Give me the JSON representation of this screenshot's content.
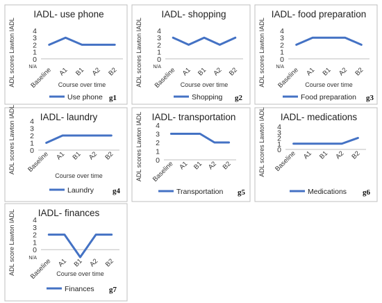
{
  "style": {
    "line_color": "#4472C4",
    "border_color": "#bfbfbf"
  },
  "chart_data": [
    {
      "type": "line",
      "title": "IADL- use phone",
      "ylabel": "ADL scores Lawton IADL",
      "xlabel": "Course over time",
      "categories": [
        "Baseline",
        "A1",
        "B1",
        "A2",
        "B2"
      ],
      "yticks": [
        "N/A",
        "0",
        "1",
        "2",
        "3",
        "4"
      ],
      "ylim": [
        -1,
        4
      ],
      "series": [
        {
          "name": "Use phone",
          "values": [
            2,
            3,
            2,
            2,
            2
          ]
        }
      ],
      "id_label": "g1"
    },
    {
      "type": "line",
      "title": "IADL- shopping",
      "ylabel": "ADL scores Lawton IADL",
      "xlabel": "Course over time",
      "categories": [
        "Baseline",
        "A1",
        "B1",
        "A2",
        "B2"
      ],
      "yticks": [
        "N/A",
        "0",
        "1",
        "2",
        "3",
        "4"
      ],
      "ylim": [
        -1,
        4
      ],
      "series": [
        {
          "name": "Shopping",
          "values": [
            3,
            2,
            3,
            2,
            3
          ]
        }
      ],
      "id_label": "g2"
    },
    {
      "type": "line",
      "title": "IADL- food preparation",
      "ylabel": "ADL scores Lawton IADL",
      "xlabel": "Course over time",
      "categories": [
        "Baseline",
        "A1",
        "B1",
        "A2",
        "B2"
      ],
      "yticks": [
        "N/A",
        "0",
        "1",
        "2",
        "3",
        "4"
      ],
      "ylim": [
        -1,
        4
      ],
      "series": [
        {
          "name": "Food preparation",
          "values": [
            2,
            3,
            3,
            3,
            2
          ]
        }
      ],
      "id_label": "g3"
    },
    {
      "type": "line",
      "title": "IADL- laundry",
      "ylabel": "ADL scores Lawton IADL",
      "xlabel": "Course over time",
      "categories": [
        "Baseline",
        "A1",
        "B1",
        "A2",
        "B2"
      ],
      "yticks": [
        "0",
        "1",
        "2",
        "3",
        "4"
      ],
      "ylim": [
        0,
        4
      ],
      "series": [
        {
          "name": "Laundry",
          "values": [
            1,
            2,
            2,
            2,
            2
          ]
        }
      ],
      "id_label": "g4"
    },
    {
      "type": "line",
      "title": "IADL- transportation",
      "ylabel": "ADL scores Lawton IADL",
      "xlabel": "",
      "categories": [
        "Baseline",
        "A1",
        "B1",
        "A2",
        "B2"
      ],
      "yticks": [
        "0",
        "1",
        "2",
        "3",
        "4"
      ],
      "ylim": [
        0,
        4
      ],
      "series": [
        {
          "name": "Transportation",
          "values": [
            3,
            3,
            3,
            2,
            2
          ]
        }
      ],
      "id_label": "g5"
    },
    {
      "type": "line",
      "title": "IADL- medications",
      "ylabel": "ADL scores Lawton IADL",
      "xlabel": "",
      "categories": [
        "Baseline",
        "A1",
        "B1",
        "A2",
        "B2"
      ],
      "yticks": [
        "0",
        "1",
        "2",
        "3",
        "4"
      ],
      "ylim": [
        0,
        4
      ],
      "series": [
        {
          "name": "Medications",
          "values": [
            1,
            1,
            1,
            1,
            2
          ]
        }
      ],
      "id_label": "g6"
    },
    {
      "type": "line",
      "title": "IADL- finances",
      "ylabel": "ADL score Lawton IADL",
      "xlabel": "Course over time",
      "categories": [
        "Baseline",
        "A1",
        "B1",
        "A2",
        "B2"
      ],
      "yticks": [
        "N/A",
        "0",
        "1",
        "2",
        "3",
        "4"
      ],
      "ylim": [
        -1,
        4
      ],
      "series": [
        {
          "name": "Finances",
          "values": [
            2,
            2,
            -1,
            2,
            2
          ]
        }
      ],
      "id_label": "g7"
    }
  ]
}
